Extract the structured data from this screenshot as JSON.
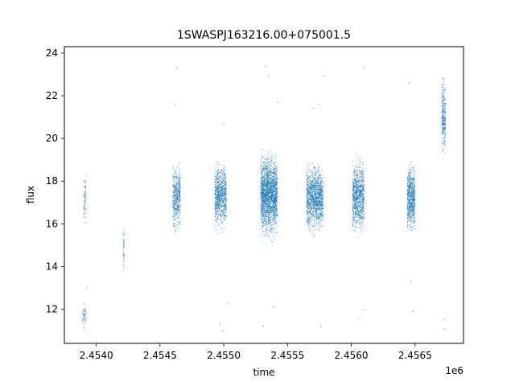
{
  "chart_data": {
    "type": "scatter",
    "title": "1SWASPJ163216.00+075001.5",
    "xlabel": "time",
    "ylabel": "flux",
    "x_offset_label": "1e6",
    "xlim": [
      2.45375,
      2.45688
    ],
    "ylim": [
      10.4,
      24.3
    ],
    "x_ticks": [
      2.454,
      2.4545,
      2.455,
      2.4555,
      2.456,
      2.4565
    ],
    "x_tick_labels": [
      "2.4540",
      "2.4545",
      "2.4550",
      "2.4555",
      "2.4560",
      "2.4565"
    ],
    "y_ticks": [
      12,
      14,
      16,
      18,
      20,
      22,
      24
    ],
    "y_tick_labels": [
      "12",
      "14",
      "16",
      "18",
      "20",
      "22",
      "24"
    ],
    "grid": false,
    "point_color": "#1f77b4",
    "clusters": [
      {
        "x_start": 2.4539,
        "x_end": 2.45392,
        "y_low": 15.8,
        "y_high": 18.6,
        "density": 0.25
      },
      {
        "x_start": 2.45389,
        "x_end": 2.45392,
        "y_low": 11.0,
        "y_high": 12.4,
        "density": 0.15
      },
      {
        "x_start": 2.45421,
        "x_end": 2.45422,
        "y_low": 13.5,
        "y_high": 16.0,
        "density": 0.05
      },
      {
        "x_start": 2.4546,
        "x_end": 2.45466,
        "y_low": 15.5,
        "y_high": 19.0,
        "density": 1.0
      },
      {
        "x_start": 2.45493,
        "x_end": 2.45502,
        "y_low": 15.6,
        "y_high": 19.0,
        "density": 1.2
      },
      {
        "x_start": 2.45529,
        "x_end": 2.45542,
        "y_low": 15.2,
        "y_high": 19.5,
        "density": 1.6
      },
      {
        "x_start": 2.45565,
        "x_end": 2.45578,
        "y_low": 15.4,
        "y_high": 19.0,
        "density": 1.2
      },
      {
        "x_start": 2.45601,
        "x_end": 2.4561,
        "y_low": 15.3,
        "y_high": 19.2,
        "density": 1.1
      },
      {
        "x_start": 2.45644,
        "x_end": 2.4565,
        "y_low": 15.4,
        "y_high": 19.0,
        "density": 1.4
      },
      {
        "x_start": 2.45671,
        "x_end": 2.45674,
        "y_low": 19.0,
        "y_high": 23.2,
        "density": 0.9
      }
    ],
    "outlier_points": [
      [
        2.45463,
        23.3
      ],
      [
        2.45462,
        21.6
      ],
      [
        2.45497,
        11.3
      ],
      [
        2.45499,
        11.0
      ],
      [
        2.45503,
        12.3
      ],
      [
        2.45531,
        11.2
      ],
      [
        2.45533,
        23.4
      ],
      [
        2.45535,
        22.9
      ],
      [
        2.45539,
        12.1
      ],
      [
        2.45542,
        21.7
      ],
      [
        2.45575,
        21.6
      ],
      [
        2.45576,
        11.2
      ],
      [
        2.45578,
        22.9
      ],
      [
        2.45607,
        11.5
      ],
      [
        2.4561,
        23.3
      ],
      [
        2.45609,
        12.0
      ],
      [
        2.45645,
        22.6
      ],
      [
        2.45648,
        11.9
      ],
      [
        2.45647,
        13.3
      ],
      [
        2.45673,
        11.1
      ],
      [
        2.45673,
        11.5
      ],
      [
        2.45393,
        13.0
      ],
      [
        2.455,
        20.7
      ],
      [
        2.4557,
        21.4
      ]
    ]
  }
}
